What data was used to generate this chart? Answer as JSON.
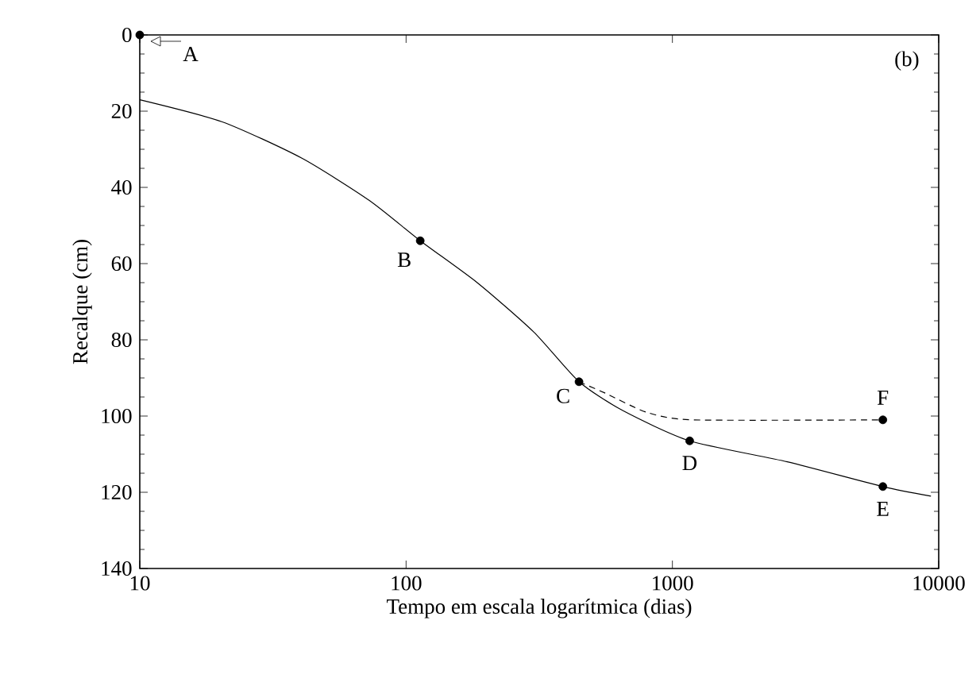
{
  "chart_data": {
    "type": "line",
    "xlabel": "Tempo em escala logarítmica (dias)",
    "ylabel": "Recalque (cm)",
    "log": "x",
    "xlim": [
      10,
      10000
    ],
    "xticks": [
      10,
      100,
      1000,
      10000
    ],
    "ylim": [
      140,
      0
    ],
    "yticks": [
      0,
      20,
      40,
      60,
      80,
      100,
      120,
      140
    ],
    "grid": false,
    "series": [
      {
        "color": "#000000",
        "line_style": "solid",
        "x": [
          10,
          20.4,
          40.5,
          73,
          113,
          185,
          302,
          446,
          653,
          1161,
          2700,
          6170,
          9350
        ],
        "values": [
          17,
          22.8,
          32.3,
          43.5,
          54,
          65,
          78,
          91,
          98.6,
          106.5,
          112,
          118.5,
          121
        ]
      },
      {
        "color": "#000000",
        "line_style": "dashed",
        "x": [
          446,
          560,
          800,
          1200,
          6170
        ],
        "values": [
          91,
          94,
          99,
          101,
          101
        ]
      },
      {
        "type": "scatter",
        "color": "#000000",
        "x": [
          10,
          113,
          446,
          1161,
          6170,
          6170
        ],
        "values": [
          0,
          54,
          91,
          106.5,
          118.5,
          101
        ]
      }
    ],
    "annotations": [
      {
        "text": "A",
        "x": 10,
        "y": 0
      },
      {
        "text": "B",
        "x": 113,
        "y": 54
      },
      {
        "text": "C",
        "x": 446,
        "y": 91
      },
      {
        "text": "D",
        "x": 1161,
        "y": 106.5
      },
      {
        "text": "E",
        "x": 6170,
        "y": 118.5
      },
      {
        "text": "F",
        "x": 6170,
        "y": 101
      },
      "(b)"
    ]
  }
}
